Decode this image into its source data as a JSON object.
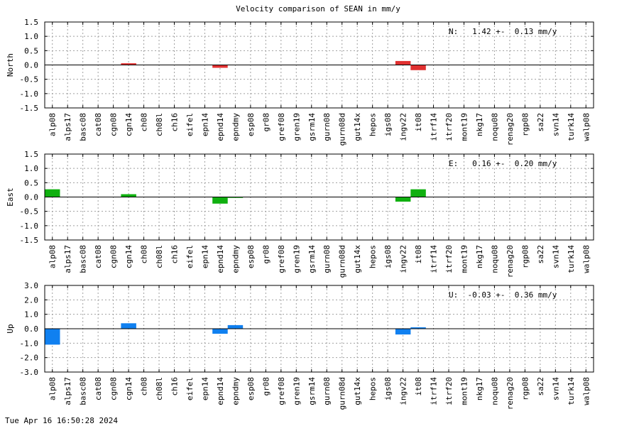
{
  "title": "Velocity comparison of SEAN in mm/y",
  "timestamp": "Tue Apr 16 16:50:28 2024",
  "chart_data": [
    {
      "type": "bar",
      "ylabel": "North",
      "ylim": [
        -1.5,
        1.5
      ],
      "yticks": [
        "1.5",
        "1.0",
        "0.5",
        "0.0",
        "-0.5",
        "-1.0",
        "-1.5"
      ],
      "annotation": "N:   1.42 +-  0.13 mm/y",
      "color": "#e03030",
      "grid": true,
      "categories": [
        "alp08",
        "alps17",
        "basc08",
        "cat08",
        "cgn08",
        "cgn14",
        "ch08",
        "ch08l",
        "ch16",
        "eifel",
        "epn14",
        "epnd14",
        "epndmy",
        "esp08",
        "gr08",
        "gref08",
        "gren19",
        "gsrm14",
        "gurn08",
        "gurn08d",
        "gut14x",
        "hepos",
        "igs08",
        "ingv22",
        "it08",
        "itrf14",
        "itrf20",
        "mont19",
        "nkg17",
        "noqu08",
        "renag20",
        "rgp08",
        "sa22",
        "svn14",
        "turk14",
        "walp08"
      ],
      "values": [
        0,
        0,
        0,
        0,
        0,
        0.06,
        0,
        0,
        0,
        0,
        0,
        -0.1,
        0,
        0,
        0,
        0,
        0,
        0,
        0,
        0,
        0,
        0,
        0,
        0.14,
        -0.18,
        0,
        0,
        0,
        0,
        0,
        0,
        0,
        0,
        0,
        0,
        0
      ]
    },
    {
      "type": "bar",
      "ylabel": "East",
      "ylim": [
        -1.5,
        1.5
      ],
      "yticks": [
        "1.5",
        "1.0",
        "0.5",
        "0.0",
        "-0.5",
        "-1.0",
        "-1.5"
      ],
      "annotation": "E:   0.16 +-  0.20 mm/y",
      "color": "#10b010",
      "grid": true,
      "categories": [
        "alp08",
        "alps17",
        "basc08",
        "cat08",
        "cgn08",
        "cgn14",
        "ch08",
        "ch08l",
        "ch16",
        "eifel",
        "epn14",
        "epnd14",
        "epndmy",
        "esp08",
        "gr08",
        "gref08",
        "gren19",
        "gsrm14",
        "gurn08",
        "gurn08d",
        "gut14x",
        "hepos",
        "igs08",
        "ingv22",
        "it08",
        "itrf14",
        "itrf20",
        "mont19",
        "nkg17",
        "noqu08",
        "renag20",
        "rgp08",
        "sa22",
        "svn14",
        "turk14",
        "walp08"
      ],
      "values": [
        0.27,
        0,
        0,
        0,
        0,
        0.1,
        0,
        0,
        0,
        0,
        0,
        -0.23,
        -0.03,
        0,
        0,
        0,
        0,
        0,
        0,
        0,
        0,
        0,
        0,
        -0.16,
        0.27,
        0,
        0,
        0,
        0,
        0,
        0,
        0,
        0,
        0,
        0,
        0
      ]
    },
    {
      "type": "bar",
      "ylabel": "Up",
      "ylim": [
        -3.0,
        3.0
      ],
      "yticks": [
        "3.0",
        "2.0",
        "1.0",
        "0.0",
        "-1.0",
        "-2.0",
        "-3.0"
      ],
      "annotation": "U:  -0.03 +-  0.36 mm/y",
      "color": "#1080f0",
      "grid": true,
      "categories": [
        "alp08",
        "alps17",
        "basc08",
        "cat08",
        "cgn08",
        "cgn14",
        "ch08",
        "ch08l",
        "ch16",
        "eifel",
        "epn14",
        "epnd14",
        "epndmy",
        "esp08",
        "gr08",
        "gref08",
        "gren19",
        "gsrm14",
        "gurn08",
        "gurn08d",
        "gut14x",
        "hepos",
        "igs08",
        "ingv22",
        "it08",
        "itrf14",
        "itrf20",
        "mont19",
        "nkg17",
        "noqu08",
        "renag20",
        "rgp08",
        "sa22",
        "svn14",
        "turk14",
        "walp08"
      ],
      "values": [
        -1.1,
        0,
        0,
        0,
        0,
        0.38,
        0,
        0,
        0,
        0,
        0,
        -0.35,
        0.25,
        0,
        0,
        0,
        0,
        0,
        0,
        0,
        0,
        0,
        0,
        -0.4,
        0.1,
        0,
        0,
        0,
        0,
        0,
        0,
        0,
        0,
        0,
        0,
        0
      ]
    }
  ]
}
